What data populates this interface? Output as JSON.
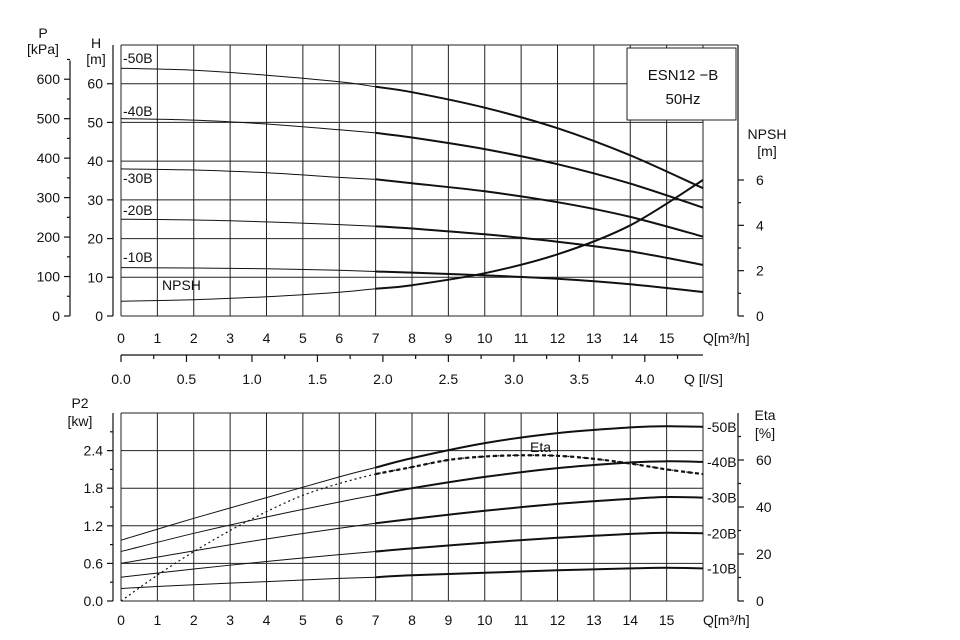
{
  "chart_data": [
    {
      "type": "line",
      "name": "head-chart",
      "legend": {
        "line1": "ESN12 −B",
        "line2": "50Hz"
      },
      "left_axis_labels": [
        "P",
        "[kPa]"
      ],
      "head_axis_labels": [
        "H",
        "[m]"
      ],
      "right_axis_labels": [
        "NPSH",
        "[m]"
      ],
      "xlabel": "Q[m³/h]",
      "xlabel2": "Q [l/S]",
      "x_ticks": [
        0,
        1,
        2,
        3,
        4,
        5,
        6,
        7,
        8,
        9,
        10,
        11,
        12,
        13,
        14,
        15
      ],
      "x2_ticks": [
        "0.0",
        "0.5",
        "1.0",
        "1.5",
        "2.0",
        "2.5",
        "3.0",
        "3.5",
        "4.0"
      ],
      "h_ticks": [
        0,
        10,
        20,
        30,
        40,
        50,
        60
      ],
      "p_ticks": [
        0,
        100,
        200,
        300,
        400,
        500,
        600
      ],
      "npsh_ticks": [
        0,
        2,
        4,
        6
      ],
      "xlim": [
        0,
        16
      ],
      "hlim": [
        0,
        70
      ],
      "npsh_scale_m_per_h_m": 0.1714,
      "series": [
        {
          "name": "-50B",
          "x": [
            0,
            2,
            4,
            6,
            7,
            8,
            10,
            12,
            14,
            16
          ],
          "y": [
            64.0,
            63.5,
            62.2,
            60.5,
            59.2,
            57.8,
            53.8,
            48.5,
            41.5,
            33.0
          ]
        },
        {
          "name": "-40B",
          "x": [
            0,
            2,
            4,
            6,
            7,
            8,
            10,
            12,
            14,
            16
          ],
          "y": [
            51.0,
            50.6,
            49.6,
            48.1,
            47.3,
            46.1,
            43.1,
            39.2,
            34.2,
            28.0
          ]
        },
        {
          "name": "-30B",
          "x": [
            0,
            2,
            4,
            6,
            7,
            8,
            10,
            12,
            14,
            16
          ],
          "y": [
            38.0,
            37.7,
            37.0,
            35.8,
            35.3,
            34.3,
            32.2,
            29.4,
            25.6,
            20.5
          ]
        },
        {
          "name": "-20B",
          "x": [
            0,
            2,
            4,
            6,
            7,
            8,
            10,
            12,
            14,
            16
          ],
          "y": [
            25.0,
            24.8,
            24.3,
            23.6,
            23.2,
            22.6,
            21.1,
            19.2,
            16.7,
            13.2
          ]
        },
        {
          "name": "-10B",
          "x": [
            0,
            2,
            4,
            6,
            7,
            8,
            10,
            12,
            14,
            16
          ],
          "y": [
            12.5,
            12.4,
            12.2,
            11.8,
            11.5,
            11.2,
            10.5,
            9.6,
            8.2,
            6.2
          ]
        },
        {
          "name": "NPSH",
          "axis": "right",
          "x": [
            0,
            2,
            4,
            6,
            8,
            10,
            12,
            14,
            16
          ],
          "y": [
            0.65,
            0.72,
            0.85,
            1.05,
            1.36,
            1.89,
            2.72,
            4.0,
            6.0
          ]
        }
      ],
      "heavy_from_x": 7,
      "grid": true
    },
    {
      "type": "line",
      "name": "power-chart",
      "left_axis_labels": [
        "P2",
        "[kw]"
      ],
      "right_axis_labels": [
        "Eta",
        "[%]"
      ],
      "eta_label": "Eta",
      "xlabel": "Q[m³/h]",
      "x_ticks": [
        0,
        1,
        2,
        3,
        4,
        5,
        6,
        7,
        8,
        9,
        10,
        11,
        12,
        13,
        14,
        15
      ],
      "p2_ticks": [
        "0.0",
        "0.6",
        "1.2",
        "1.8",
        "2.4"
      ],
      "eta_ticks": [
        0,
        20,
        40,
        60
      ],
      "xlim": [
        0,
        16
      ],
      "p2lim": [
        0,
        3.0
      ],
      "series": [
        {
          "name": "-50B",
          "x": [
            0,
            2,
            4,
            6,
            7,
            8,
            10,
            12,
            14,
            15,
            16
          ],
          "y": [
            0.97,
            1.32,
            1.65,
            1.98,
            2.13,
            2.28,
            2.52,
            2.68,
            2.77,
            2.79,
            2.78
          ]
        },
        {
          "name": "-40B",
          "x": [
            0,
            2,
            4,
            6,
            7,
            8,
            10,
            12,
            14,
            15,
            16
          ],
          "y": [
            0.79,
            1.08,
            1.34,
            1.58,
            1.69,
            1.8,
            1.98,
            2.12,
            2.21,
            2.23,
            2.22
          ]
        },
        {
          "name": "-30B",
          "x": [
            0,
            2,
            4,
            6,
            7,
            8,
            10,
            12,
            14,
            15,
            16
          ],
          "y": [
            0.6,
            0.8,
            0.99,
            1.16,
            1.24,
            1.31,
            1.44,
            1.55,
            1.63,
            1.66,
            1.65
          ]
        },
        {
          "name": "-20B",
          "x": [
            0,
            2,
            4,
            6,
            7,
            8,
            10,
            12,
            14,
            15,
            16
          ],
          "y": [
            0.38,
            0.51,
            0.63,
            0.74,
            0.79,
            0.84,
            0.93,
            1.01,
            1.07,
            1.09,
            1.08
          ]
        },
        {
          "name": "-10B",
          "x": [
            0,
            2,
            4,
            6,
            7,
            8,
            10,
            12,
            14,
            15,
            16
          ],
          "y": [
            0.2,
            0.26,
            0.31,
            0.36,
            0.38,
            0.41,
            0.45,
            0.49,
            0.52,
            0.53,
            0.52
          ]
        },
        {
          "name": "Eta",
          "axis": "right",
          "x": [
            0,
            1,
            2,
            3,
            4,
            5,
            6,
            7,
            8,
            9,
            10,
            11,
            12,
            13,
            14,
            15,
            16
          ],
          "y": [
            0,
            11,
            21,
            30,
            38,
            45,
            50,
            54,
            57,
            60,
            61.5,
            62,
            61.8,
            60.5,
            58.5,
            56,
            54
          ]
        }
      ],
      "heavy_from_x": 7,
      "grid": true
    }
  ]
}
